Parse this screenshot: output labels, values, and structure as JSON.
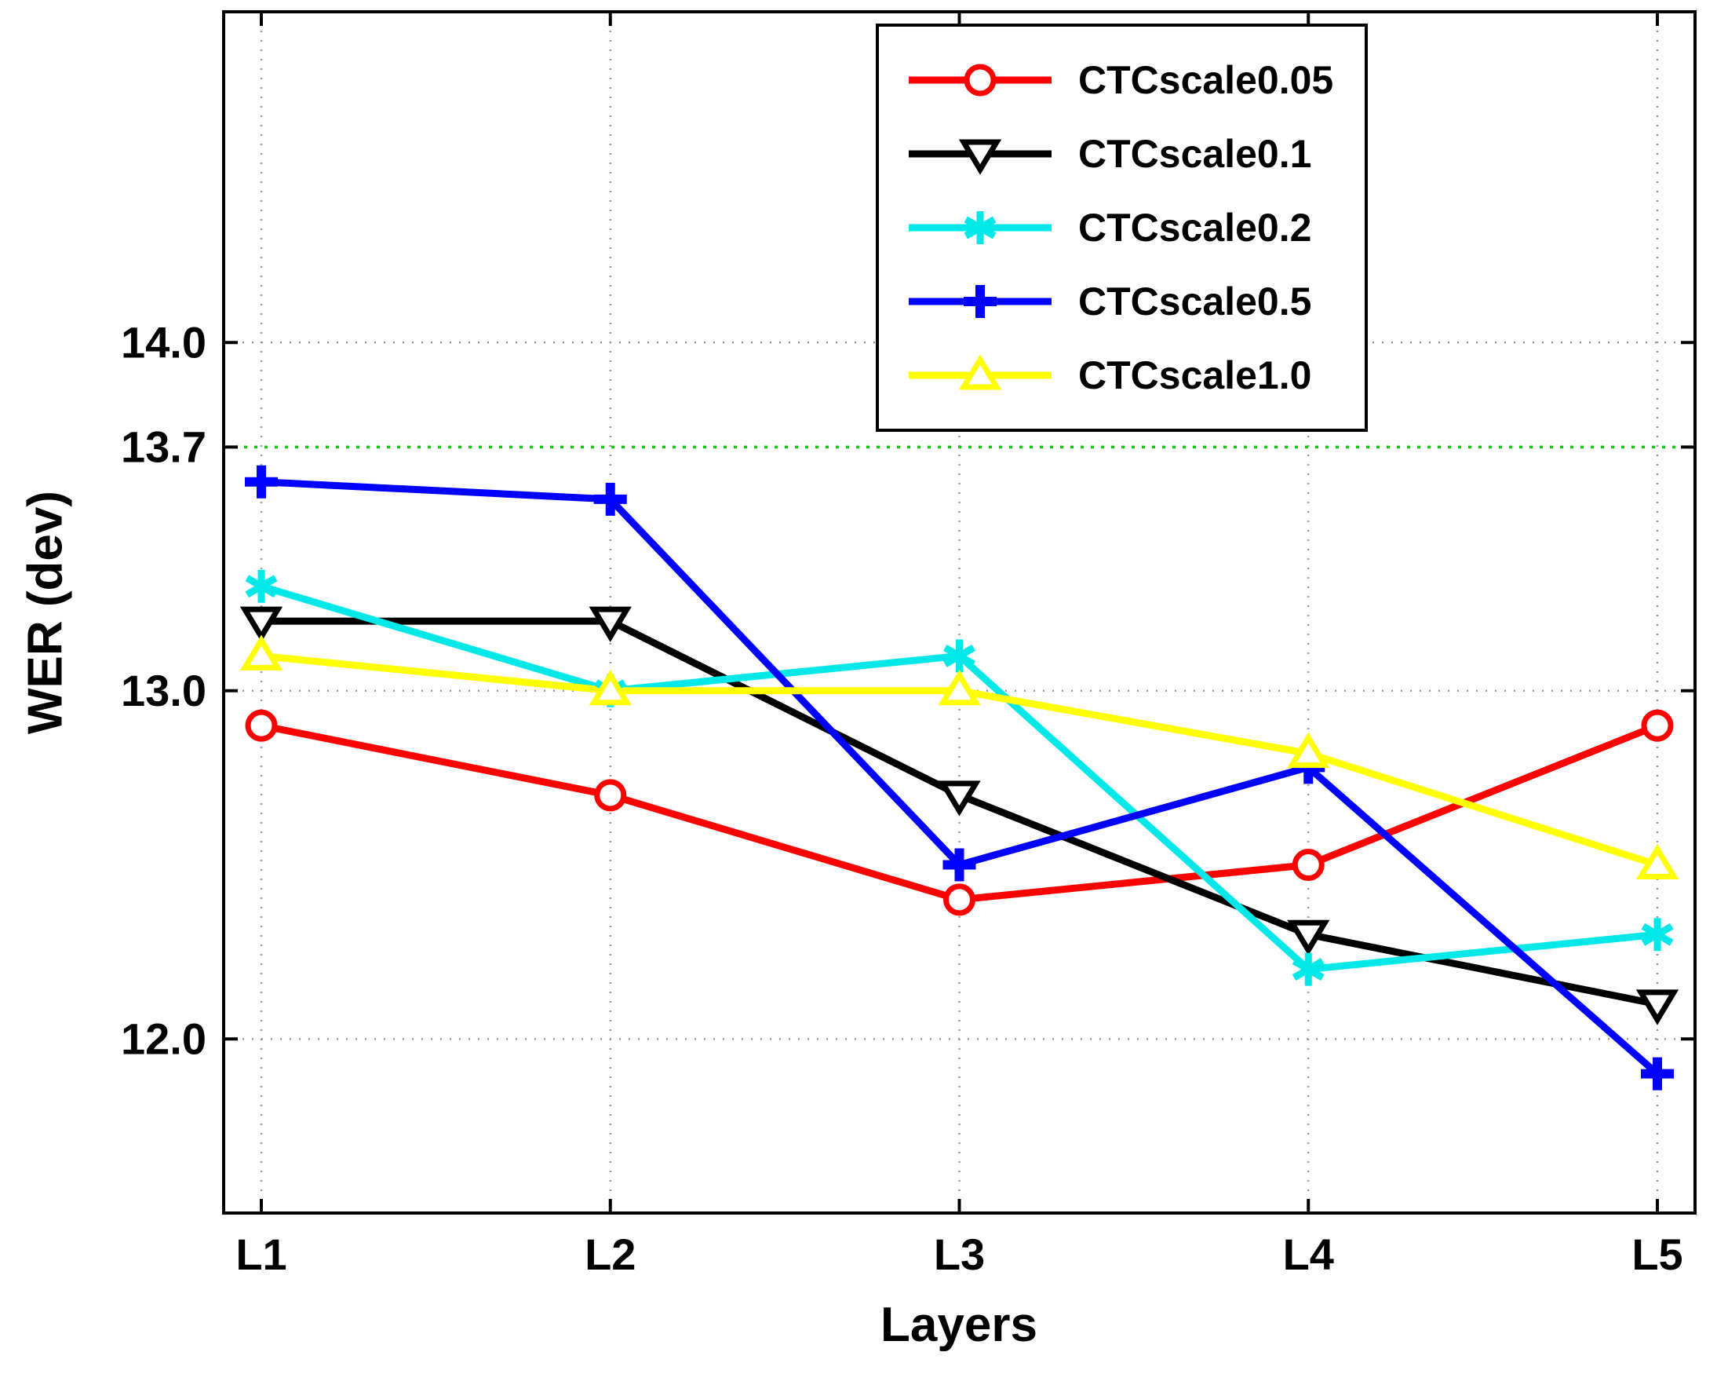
{
  "figure_title": "",
  "axes": {
    "xlabel": "Layers",
    "ylabel": "WER (dev)"
  },
  "chart_data": {
    "type": "line",
    "title": "",
    "xlabel": "Layers",
    "ylabel": "WER (dev)",
    "categories": [
      "L1",
      "L2",
      "L3",
      "L4",
      "L5"
    ],
    "ylim": [
      11.5,
      14.95
    ],
    "yticks": [
      12.0,
      13.0,
      13.7,
      14.0
    ],
    "ytick_labels": [
      "12.0",
      "13.0",
      "13.7",
      "14.0"
    ],
    "grid": true,
    "grid_color": "#9a9a9a",
    "baseline": {
      "value": 13.7,
      "color": "#00cc00",
      "style": "dotted"
    },
    "legend_position": "top-right",
    "series": [
      {
        "name": "CTCscale0.05",
        "color": "#ff0000",
        "marker": "circle",
        "values": [
          12.9,
          12.7,
          12.4,
          12.5,
          12.9
        ]
      },
      {
        "name": "CTCscale0.1",
        "color": "#000000",
        "marker": "triangle-down",
        "values": [
          13.2,
          13.2,
          12.7,
          12.3,
          12.1
        ]
      },
      {
        "name": "CTCscale0.2",
        "color": "#00e8e8",
        "marker": "asterisk",
        "values": [
          13.3,
          13.0,
          13.1,
          12.2,
          12.3
        ]
      },
      {
        "name": "CTCscale0.5",
        "color": "#0000ff",
        "marker": "plus",
        "values": [
          13.6,
          13.55,
          12.5,
          12.78,
          11.9
        ]
      },
      {
        "name": "CTCscale1.0",
        "color": "#ffff00",
        "marker": "triangle-up",
        "values": [
          13.1,
          13.0,
          13.0,
          12.82,
          12.5
        ]
      }
    ]
  }
}
